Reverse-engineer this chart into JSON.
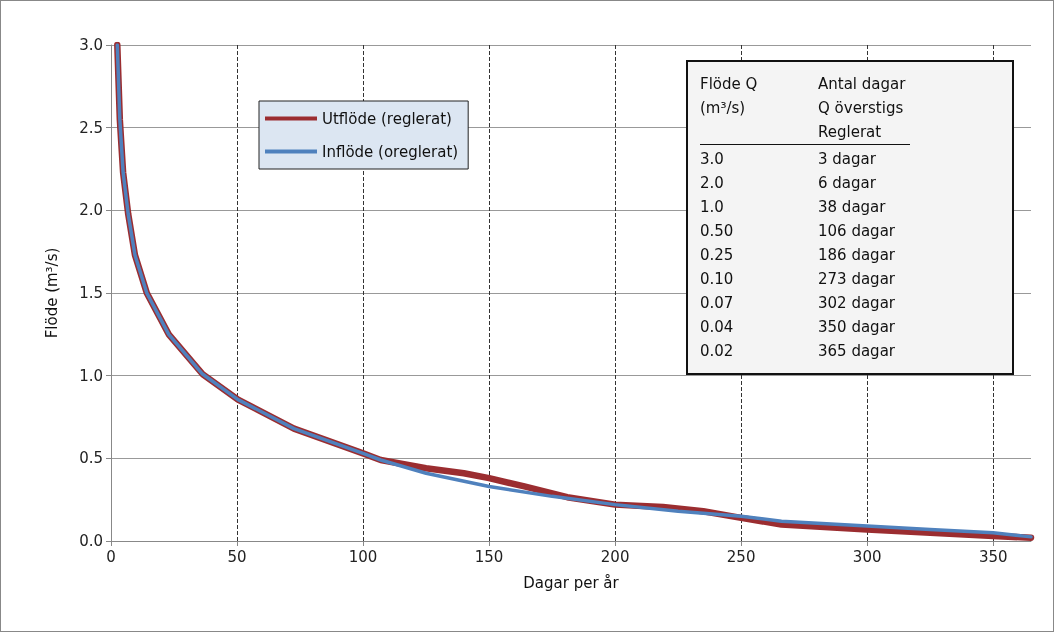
{
  "chart_data": {
    "type": "line",
    "xlabel": "Dagar per år",
    "ylabel": "Flöde (m³/s)",
    "series": [
      {
        "name": "Utflöde (reglerat)",
        "color": "#9b2d30",
        "x": [
          2.5,
          3.5,
          4.8,
          6.8,
          9.5,
          14.2,
          22.9,
          36.3,
          50.4,
          72.6,
          100,
          107,
          125,
          140,
          150,
          164,
          181,
          200,
          219,
          235,
          250,
          266,
          300,
          325,
          350,
          365
        ],
        "values": [
          3.0,
          2.55,
          2.23,
          1.98,
          1.73,
          1.5,
          1.25,
          1.01,
          0.855,
          0.68,
          0.53,
          0.49,
          0.44,
          0.41,
          0.38,
          0.33,
          0.265,
          0.22,
          0.205,
          0.18,
          0.14,
          0.1,
          0.07,
          0.05,
          0.03,
          0.02
        ]
      },
      {
        "name": "Inflöde (oreglerat)",
        "color": "#4f81bd",
        "x": [
          2.5,
          3.5,
          4.8,
          6.8,
          9.5,
          14.2,
          22.9,
          36.3,
          50.4,
          72.6,
          100,
          107,
          125,
          150,
          175,
          200,
          225,
          250,
          266,
          300,
          325,
          350,
          365
        ],
        "values": [
          3.0,
          2.55,
          2.23,
          1.98,
          1.73,
          1.5,
          1.25,
          1.01,
          0.855,
          0.68,
          0.53,
          0.49,
          0.41,
          0.33,
          0.27,
          0.22,
          0.18,
          0.15,
          0.12,
          0.09,
          0.07,
          0.05,
          0.025
        ]
      }
    ],
    "xlim": [
      0,
      365
    ],
    "xticks": [
      0,
      50,
      100,
      150,
      200,
      250,
      300,
      350
    ],
    "ylim": [
      0,
      3
    ],
    "yticks": [
      {
        "value": 0,
        "label": "0.0"
      },
      {
        "value": 0.5,
        "label": "0.5"
      },
      {
        "value": 1,
        "label": "1.0"
      },
      {
        "value": 1.5,
        "label": "1.5"
      },
      {
        "value": 2,
        "label": "2.0"
      },
      {
        "value": 2.5,
        "label": "2.5"
      },
      {
        "value": 3,
        "label": "3.0"
      }
    ],
    "grid": true,
    "legend": "top left",
    "marker": "none",
    "line_style": "solid",
    "annotations": [
      "Flöde Q\n(m³/s)",
      "Antal dagar\nQ överstigs\nReglerat",
      "3.0",
      "3 dagar",
      "2.0",
      "6 dagar",
      "1.0",
      "38 dagar",
      "0.50",
      "106 dagar",
      "0.25",
      "186 dagar",
      "0.10",
      "273 dagar",
      "0.07",
      "302 dagar",
      "0.04",
      "350 dagar",
      "0.02",
      "365 dagar"
    ]
  }
}
